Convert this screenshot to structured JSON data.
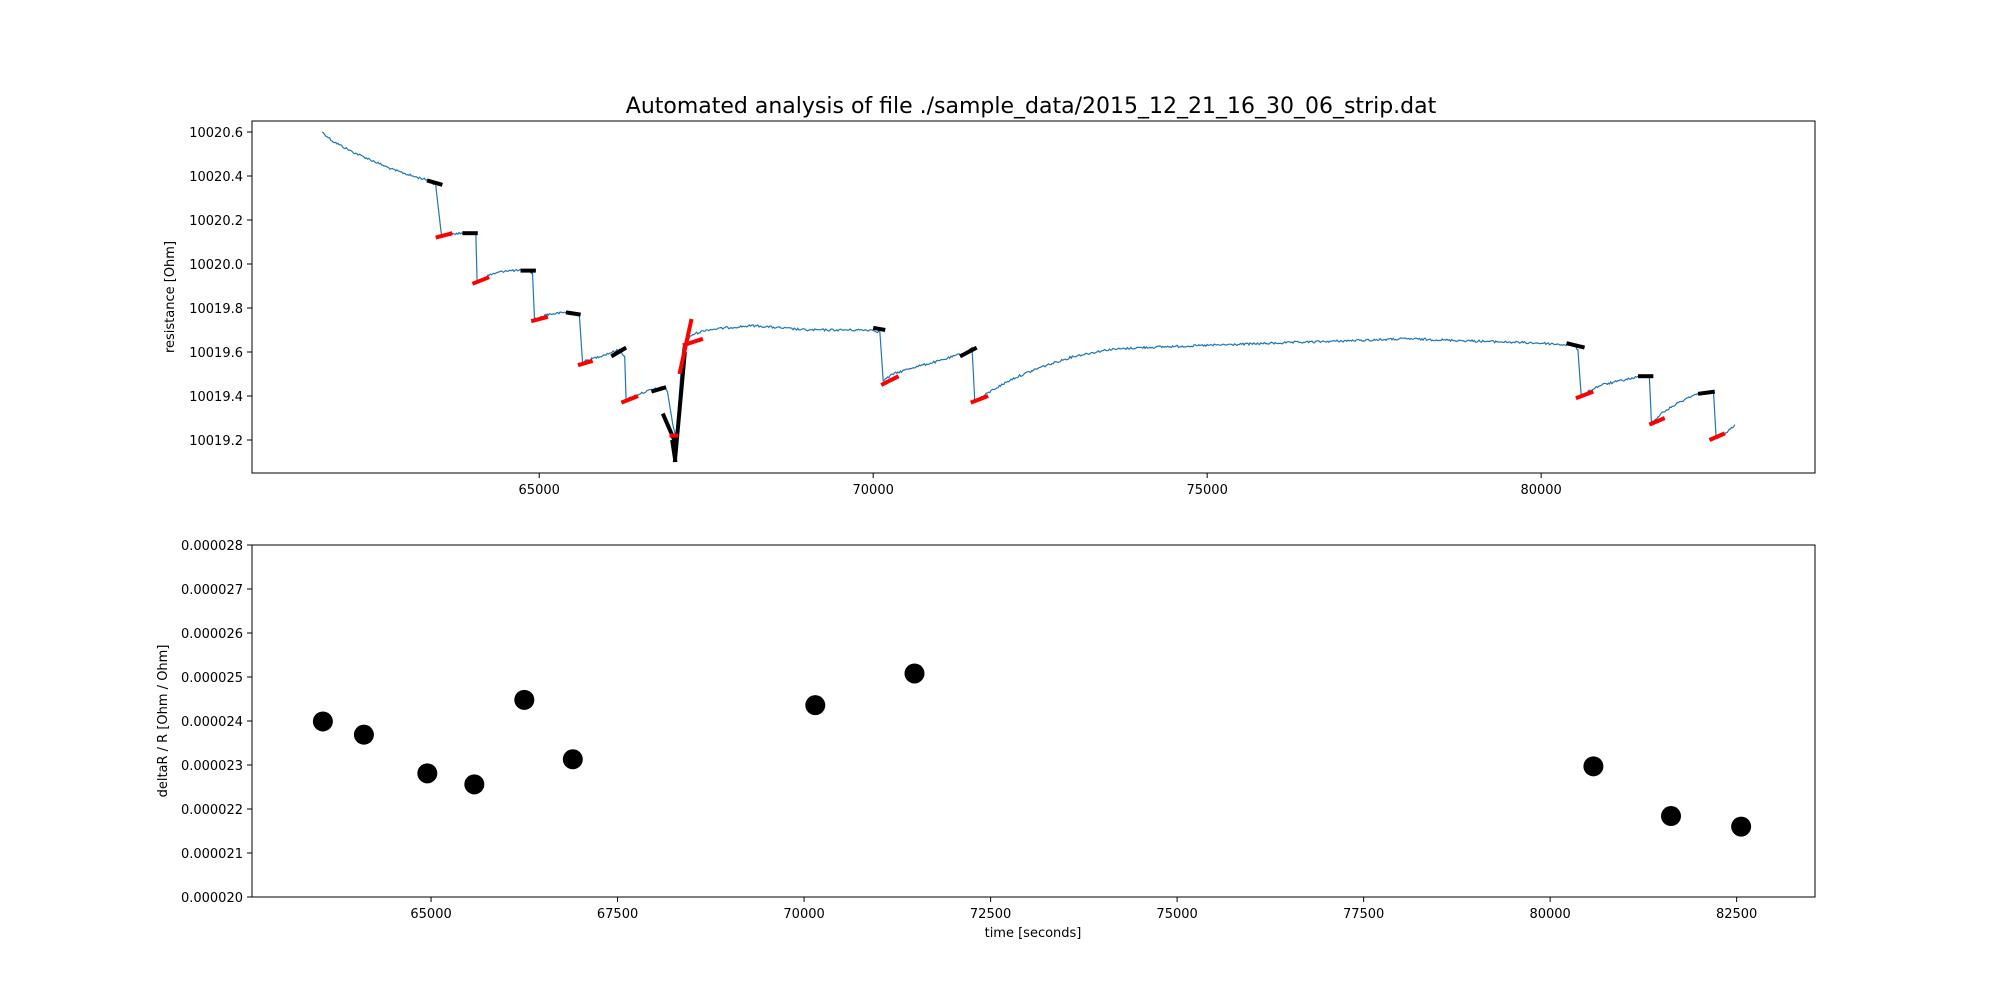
{
  "title": "Automated analysis of file ./sample_data/2015_12_21_16_30_06_strip.dat",
  "colors": {
    "trace": "#1f77b4",
    "fit_before": "#000000",
    "fit_after": "#ff0000",
    "points": "#000000"
  },
  "chart_data": [
    {
      "type": "line",
      "title": "Automated analysis of file ./sample_data/2015_12_21_16_30_06_strip.dat",
      "xlabel": "",
      "ylabel": "resistance [Ohm]",
      "xlim": [
        60700,
        84100
      ],
      "ylim": [
        10019.05,
        10020.65
      ],
      "xticks": [
        65000,
        70000,
        75000,
        80000
      ],
      "yticks": [
        10019.2,
        10019.4,
        10019.6,
        10019.8,
        10020.0,
        10020.2,
        10020.4,
        10020.6
      ],
      "ytick_labels": [
        "10019.2",
        "10019.4",
        "10019.6",
        "10019.8",
        "10020.0",
        "10020.2",
        "10020.4",
        "10020.6"
      ],
      "grid": false,
      "trace": {
        "x": [
          61750,
          61900,
          62200,
          62500,
          62800,
          63100,
          63350,
          63450,
          63540,
          63600,
          63800,
          64050,
          64070,
          64150,
          64250,
          64500,
          64800,
          64900,
          64930,
          64980,
          65100,
          65400,
          65600,
          65650,
          65700,
          65800,
          66000,
          66200,
          66280,
          66300,
          66350,
          66500,
          66700,
          66880,
          66920,
          67000,
          67050,
          67150,
          67200,
          67300,
          67500,
          67800,
          68200,
          68600,
          69000,
          69400,
          69800,
          70000,
          70100,
          70150,
          70200,
          70300,
          70600,
          71000,
          71400,
          71480,
          71520,
          71600,
          71800,
          72100,
          72500,
          73000,
          73500,
          74000,
          75000,
          76000,
          77000,
          78000,
          79000,
          80000,
          80500,
          80550,
          80600,
          80700,
          80900,
          81200,
          81500,
          81620,
          81650,
          81700,
          81800,
          82000,
          82250,
          82500,
          82580,
          82620,
          82700,
          82800,
          82900
        ],
        "y": [
          10020.6,
          10020.56,
          10020.51,
          10020.47,
          10020.43,
          10020.4,
          10020.38,
          10020.36,
          10020.12,
          10020.13,
          10020.14,
          10020.14,
          10019.92,
          10019.93,
          10019.95,
          10019.97,
          10019.97,
          10019.96,
          10019.75,
          10019.75,
          10019.77,
          10019.78,
          10019.77,
          10019.55,
          10019.56,
          10019.57,
          10019.59,
          10019.61,
          10019.58,
          10019.38,
          10019.39,
          10019.41,
          10019.43,
          10019.44,
          10019.42,
          10019.27,
          10019.21,
          10019.62,
          10019.65,
          10019.68,
          10019.7,
          10019.71,
          10019.72,
          10019.71,
          10019.7,
          10019.7,
          10019.7,
          10019.7,
          10019.69,
          10019.47,
          10019.48,
          10019.5,
          10019.53,
          10019.56,
          10019.6,
          10019.62,
          10019.38,
          10019.39,
          10019.43,
          10019.48,
          10019.53,
          10019.58,
          10019.61,
          10019.62,
          10019.63,
          10019.64,
          10019.65,
          10019.66,
          10019.65,
          10019.64,
          10019.63,
          10019.61,
          10019.4,
          10019.42,
          10019.45,
          10019.47,
          10019.49,
          10019.49,
          10019.28,
          10019.29,
          10019.32,
          10019.36,
          10019.4,
          10019.42,
          10019.42,
          10019.21,
          10019.22,
          10019.24,
          10019.27
        ]
      },
      "fits_before": [
        {
          "x": [
            63320,
            63550
          ],
          "y": [
            10020.38,
            10020.36
          ]
        },
        {
          "x": [
            63850,
            64080
          ],
          "y": [
            10020.14,
            10020.14
          ]
        },
        {
          "x": [
            64720,
            64950
          ],
          "y": [
            10019.97,
            10019.97
          ]
        },
        {
          "x": [
            65400,
            65620
          ],
          "y": [
            10019.78,
            10019.77
          ]
        },
        {
          "x": [
            66080,
            66300
          ],
          "y": [
            10019.58,
            10019.62
          ]
        },
        {
          "x": [
            66680,
            66900
          ],
          "y": [
            10019.42,
            10019.44
          ]
        },
        {
          "x": [
            66850,
            67050
          ],
          "y": [
            10019.32,
            10019.18
          ]
        },
        {
          "x": [
            66990,
            67040
          ],
          "y": [
            10019.2,
            10019.1
          ]
        },
        {
          "x": [
            67030,
            67180
          ],
          "y": [
            10019.1,
            10019.6
          ]
        },
        {
          "x": [
            70000,
            70180
          ],
          "y": [
            10019.71,
            10019.7
          ]
        },
        {
          "x": [
            71300,
            71550
          ],
          "y": [
            10019.58,
            10019.62
          ]
        },
        {
          "x": [
            80380,
            80650
          ],
          "y": [
            10019.64,
            10019.62
          ]
        },
        {
          "x": [
            81450,
            81680
          ],
          "y": [
            10019.49,
            10019.49
          ]
        },
        {
          "x": [
            82350,
            82600
          ],
          "y": [
            10019.41,
            10019.42
          ]
        }
      ],
      "fits_after": [
        {
          "x": [
            63450,
            63700
          ],
          "y": [
            10020.12,
            10020.14
          ]
        },
        {
          "x": [
            64000,
            64250
          ],
          "y": [
            10019.91,
            10019.94
          ]
        },
        {
          "x": [
            64880,
            65130
          ],
          "y": [
            10019.74,
            10019.76
          ]
        },
        {
          "x": [
            65580,
            65800
          ],
          "y": [
            10019.54,
            10019.56
          ]
        },
        {
          "x": [
            66230,
            66480
          ],
          "y": [
            10019.37,
            10019.4
          ]
        },
        {
          "x": [
            66950,
            67080
          ],
          "y": [
            10019.22,
            10019.22
          ]
        },
        {
          "x": [
            67150,
            67450
          ],
          "y": [
            10019.63,
            10019.66
          ]
        },
        {
          "x": [
            67100,
            67280
          ],
          "y": [
            10019.5,
            10019.75
          ]
        },
        {
          "x": [
            70120,
            70380
          ],
          "y": [
            10019.45,
            10019.49
          ]
        },
        {
          "x": [
            71460,
            71720
          ],
          "y": [
            10019.37,
            10019.4
          ]
        },
        {
          "x": [
            80520,
            80780
          ],
          "y": [
            10019.39,
            10019.42
          ]
        },
        {
          "x": [
            81620,
            81850
          ],
          "y": [
            10019.27,
            10019.3
          ]
        },
        {
          "x": [
            82520,
            82750
          ],
          "y": [
            10019.2,
            10019.23
          ]
        }
      ]
    },
    {
      "type": "scatter",
      "xlabel": "time [seconds]",
      "ylabel": "deltaR / R [Ohm / Ohm]",
      "xlim": [
        62600,
        83550
      ],
      "ylim": [
        2e-05,
        2.8e-05
      ],
      "xticks": [
        65000,
        67500,
        70000,
        72500,
        75000,
        77500,
        80000,
        82500
      ],
      "yticks": [
        2e-05,
        2.1e-05,
        2.2e-05,
        2.3e-05,
        2.4e-05,
        2.5e-05,
        2.6e-05,
        2.7e-05,
        2.8e-05
      ],
      "ytick_labels": [
        "0.000020",
        "0.000021",
        "0.000022",
        "0.000023",
        "0.000024",
        "0.000025",
        "0.000026",
        "0.000027",
        "0.000028"
      ],
      "grid": false,
      "x": [
        63550,
        64100,
        64950,
        65580,
        66250,
        66900,
        70150,
        71480,
        80580,
        81620,
        82560
      ],
      "y": [
        2.399e-05,
        2.369e-05,
        2.281e-05,
        2.256e-05,
        2.448e-05,
        2.313e-05,
        2.436e-05,
        2.508e-05,
        2.297e-05,
        2.184e-05,
        2.16e-05
      ]
    }
  ]
}
